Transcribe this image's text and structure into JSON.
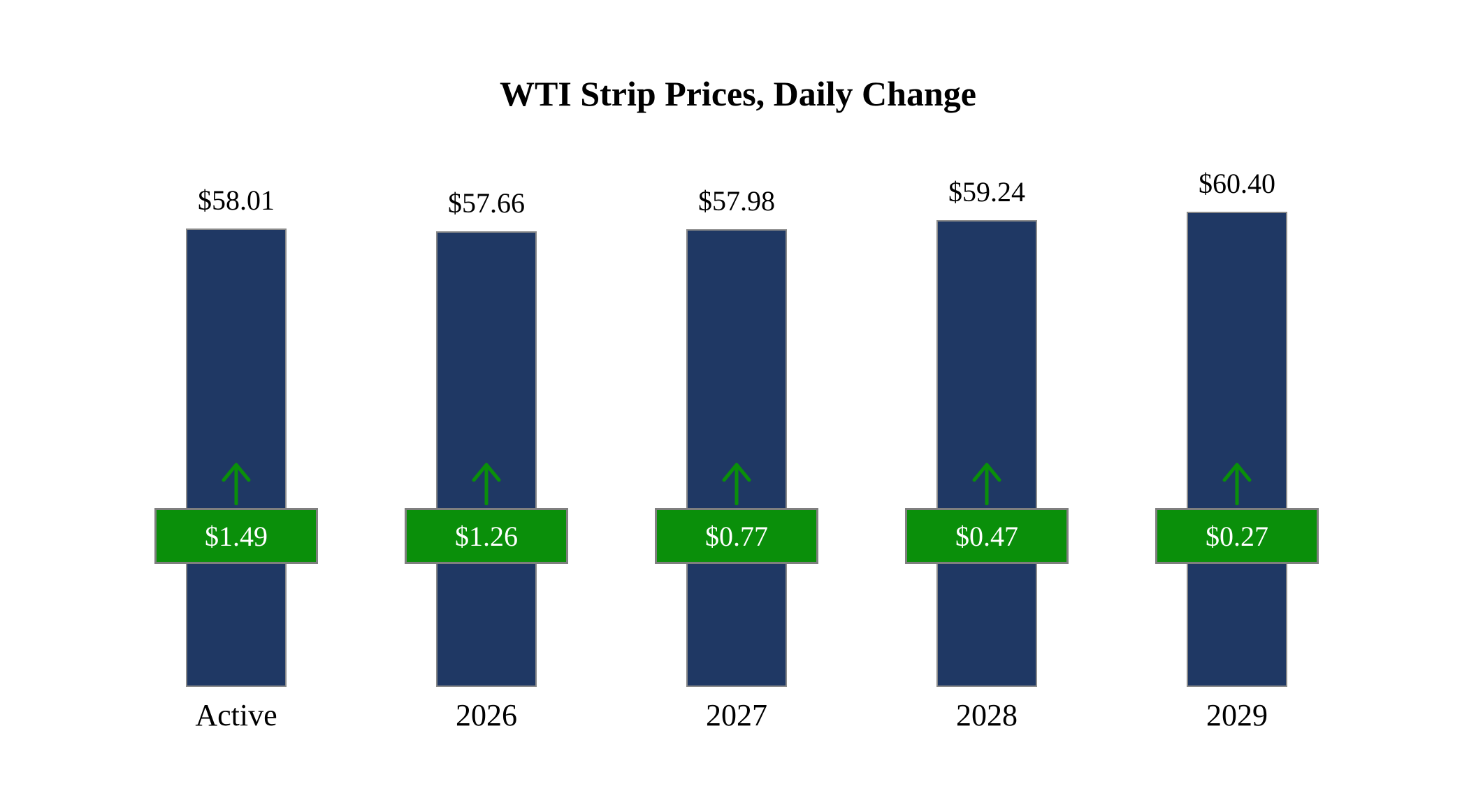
{
  "title": "WTI Strip Prices, Daily Change",
  "colors": {
    "bar_fill": "#1F3864",
    "badge_fill": "#0a8f0a",
    "badge_border": "#7f7f7f",
    "arrow": "#0a8f0a",
    "text": "#000000",
    "badge_text": "#ffffff",
    "background": "#ffffff"
  },
  "chart_data": {
    "type": "bar",
    "title": "WTI Strip Prices, Daily Change",
    "categories": [
      "Active",
      "2026",
      "2027",
      "2028",
      "2029"
    ],
    "series": [
      {
        "name": "Strip Price",
        "values": [
          58.01,
          57.66,
          57.98,
          59.24,
          60.4
        ],
        "labels": [
          "$58.01",
          "$57.66",
          "$57.98",
          "$59.24",
          "$60.40"
        ]
      },
      {
        "name": "Daily Change",
        "values": [
          1.49,
          1.26,
          0.77,
          0.47,
          0.27
        ],
        "labels": [
          "$1.49",
          "$1.26",
          "$0.77",
          "$0.47",
          "$0.27"
        ],
        "direction": "up"
      }
    ],
    "xlabel": "",
    "ylabel": "",
    "legend": "none",
    "grid": false,
    "axes_visible": false
  }
}
